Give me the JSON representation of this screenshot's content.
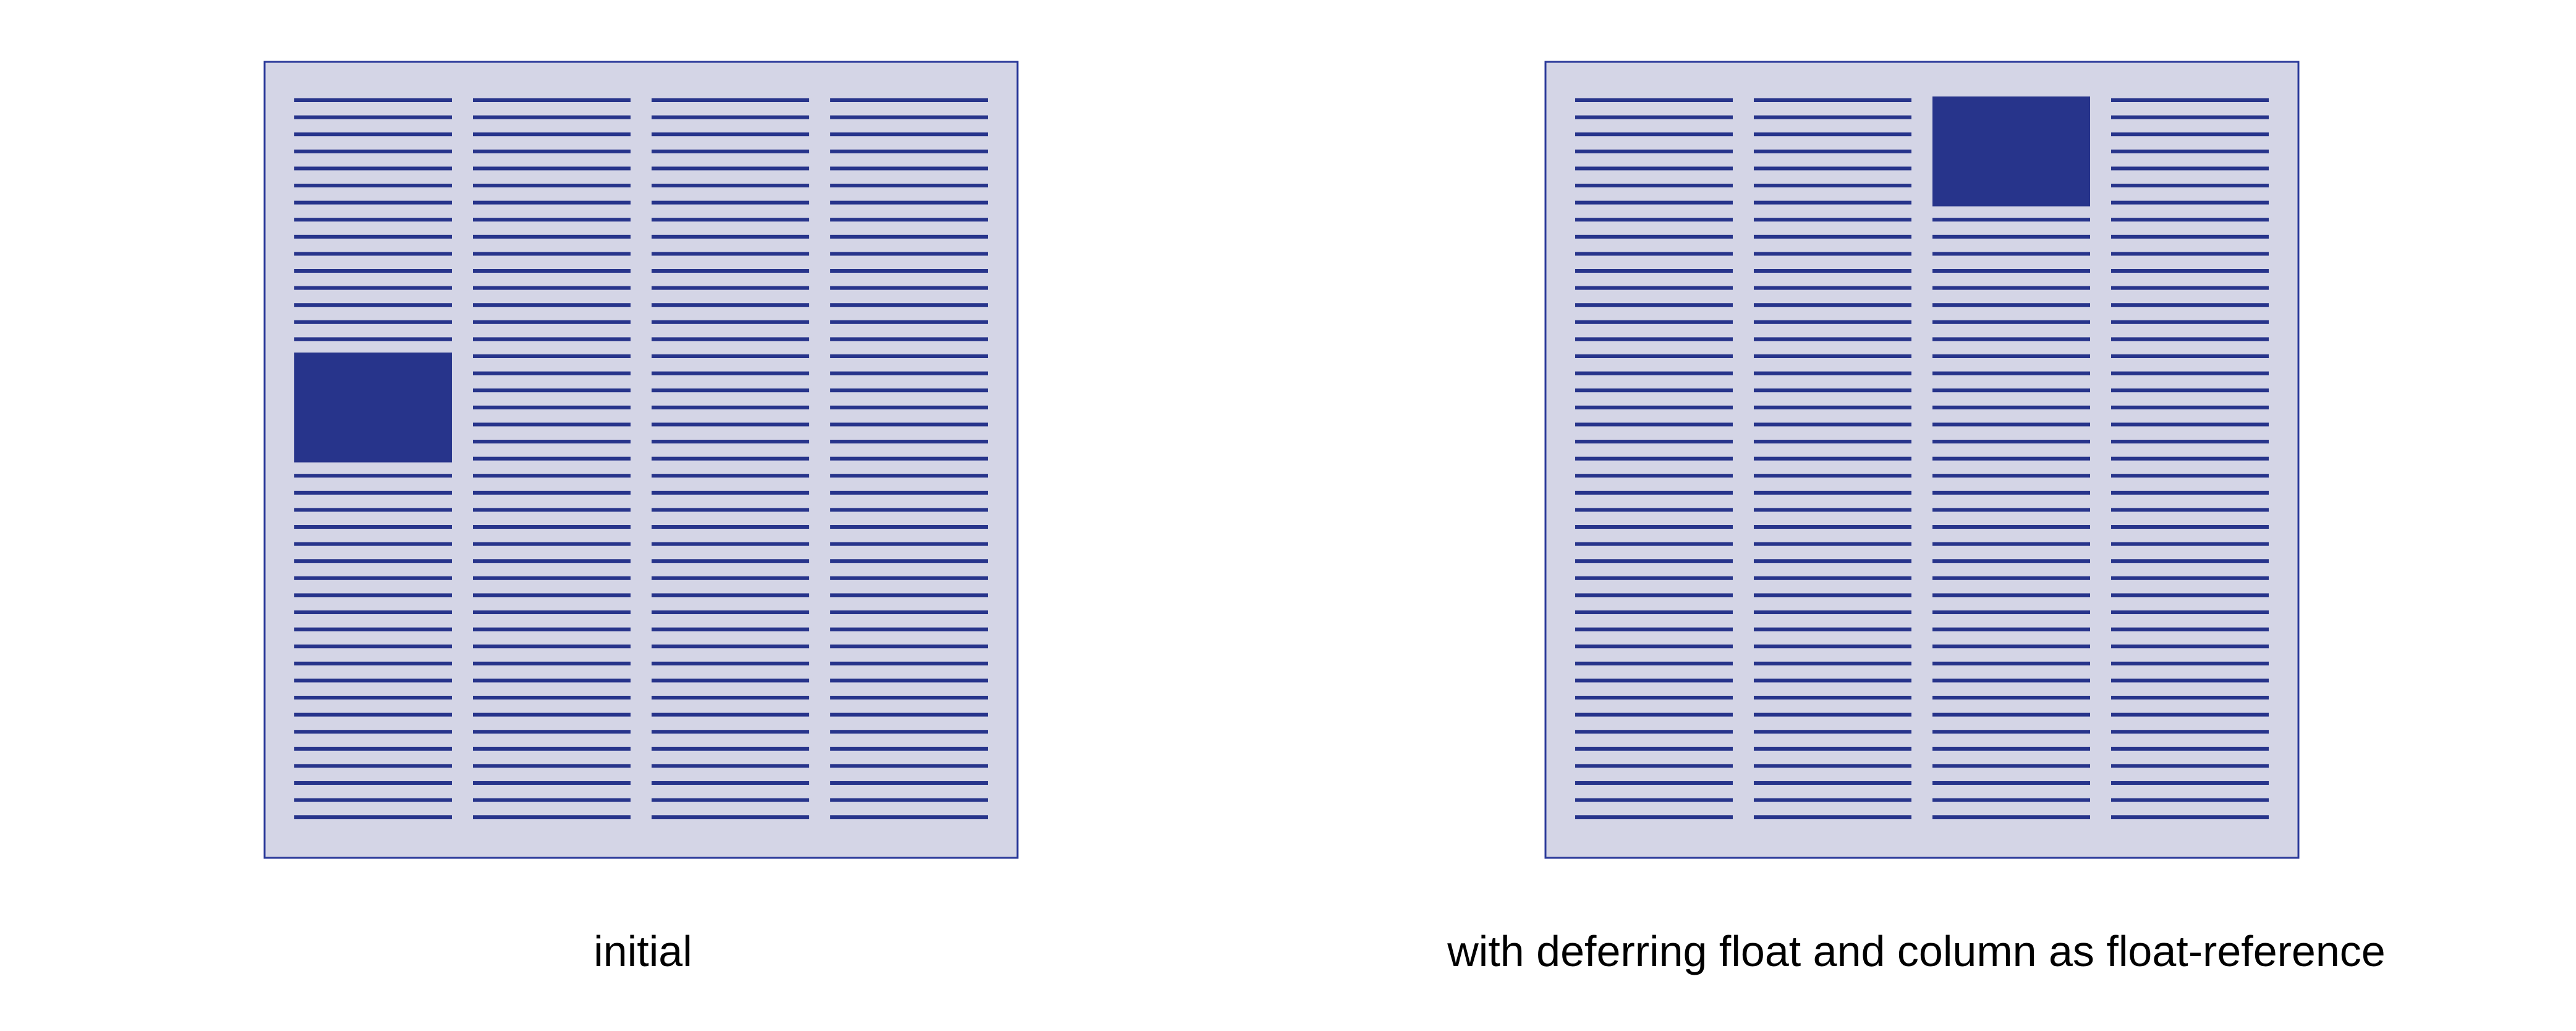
{
  "colors": {
    "page_fill": "#d4d5e6",
    "page_border": "#2b3a9a",
    "line": "#27348b",
    "float": "#27348b"
  },
  "panels": [
    {
      "caption": "initial",
      "columns": 4,
      "lines_per_column": 43,
      "float": {
        "column": 1,
        "row_start": 16,
        "row_end": 22
      }
    },
    {
      "caption": "with deferring float and column as float-reference",
      "columns": 4,
      "lines_per_column": 43,
      "float": {
        "column": 3,
        "row_start": 1,
        "row_end": 7
      }
    }
  ]
}
